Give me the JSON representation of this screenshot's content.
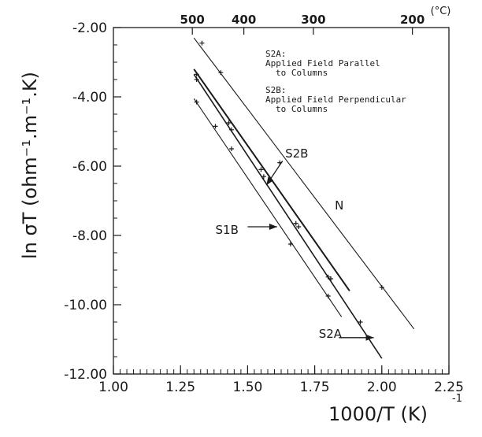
{
  "chart_data": {
    "type": "line",
    "xlabel": "1000/T  (K)",
    "xlabel_sup": "-1",
    "ylabel": "ln σT  (ohm⁻¹.m⁻¹.K)",
    "xlim": [
      1.0,
      2.25
    ],
    "ylim": [
      -12.0,
      -2.0
    ],
    "x_ticks": [
      "1.00",
      "1.25",
      "1.50",
      "1.75",
      "2.00",
      "2.25"
    ],
    "y_ticks": [
      "-2.00",
      "-4.00",
      "-6.00",
      "-8.00",
      "-10.00",
      "-12.00"
    ],
    "top_axis": {
      "unit": "(°C)",
      "labels": [
        {
          "text": "500",
          "x": 1.294
        },
        {
          "text": "400",
          "x": 1.486
        },
        {
          "text": "300",
          "x": 1.745
        },
        {
          "text": "200",
          "x": 2.114
        }
      ]
    },
    "annotation_lines": [
      "S2A:",
      "Applied Field Parallel",
      "to Columns",
      "S2B:",
      "Applied Field Perpendicular",
      "to Columns"
    ],
    "series": [
      {
        "name": "N",
        "line": [
          [
            1.3,
            -2.3
          ],
          [
            2.12,
            -10.7
          ]
        ],
        "points": [
          [
            1.33,
            -2.45
          ],
          [
            1.4,
            -3.3
          ],
          [
            1.62,
            -5.9
          ],
          [
            2.0,
            -9.5
          ]
        ],
        "label": "N",
        "label_at": [
          1.825,
          -7.25
        ]
      },
      {
        "name": "S2B",
        "line": [
          [
            1.3,
            -3.2
          ],
          [
            1.88,
            -9.6
          ]
        ],
        "points": [
          [
            1.31,
            -3.35
          ],
          [
            1.43,
            -4.75
          ],
          [
            1.55,
            -6.1
          ],
          [
            1.68,
            -7.65
          ],
          [
            1.8,
            -9.2
          ]
        ],
        "label": "S2B",
        "label_at": [
          1.64,
          -5.75
        ],
        "arrow": [
          [
            1.63,
            -5.85
          ],
          [
            1.57,
            -6.55
          ]
        ]
      },
      {
        "name": "S2A",
        "line": [
          [
            1.3,
            -3.35
          ],
          [
            2.0,
            -11.55
          ]
        ],
        "points": [
          [
            1.31,
            -3.5
          ],
          [
            1.44,
            -4.95
          ],
          [
            1.56,
            -6.3
          ],
          [
            1.69,
            -7.75
          ],
          [
            1.81,
            -9.25
          ],
          [
            1.92,
            -10.5
          ]
        ],
        "label": "S2A",
        "label_at": [
          1.765,
          -10.95
        ],
        "arrow": [
          [
            1.84,
            -10.95
          ],
          [
            1.97,
            -10.95
          ]
        ]
      },
      {
        "name": "S1B",
        "line": [
          [
            1.3,
            -4.05
          ],
          [
            1.85,
            -10.35
          ]
        ],
        "points": [
          [
            1.31,
            -4.15
          ],
          [
            1.38,
            -4.85
          ],
          [
            1.44,
            -5.5
          ],
          [
            1.66,
            -8.25
          ],
          [
            1.8,
            -9.75
          ]
        ],
        "label": "S1B",
        "label_at": [
          1.38,
          -7.95
        ],
        "arrow": [
          [
            1.5,
            -7.75
          ],
          [
            1.61,
            -7.75
          ]
        ]
      }
    ]
  }
}
